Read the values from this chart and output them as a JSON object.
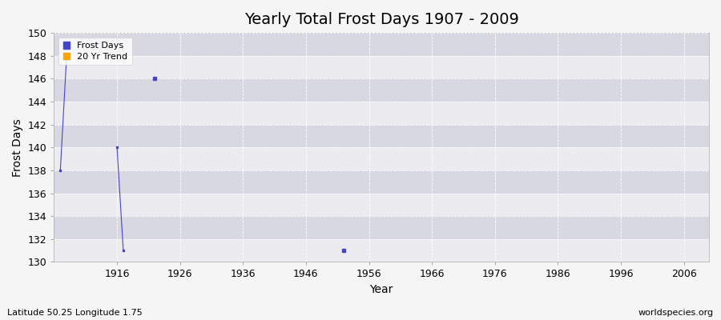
{
  "title": "Yearly Total Frost Days 1907 - 2009",
  "xlabel": "Year",
  "ylabel": "Frost Days",
  "ylim": [
    130,
    150
  ],
  "xlim": [
    1906,
    2010
  ],
  "xticks": [
    1916,
    1926,
    1936,
    1946,
    1956,
    1966,
    1976,
    1986,
    1996,
    2006
  ],
  "yticks": [
    130,
    132,
    134,
    136,
    138,
    140,
    142,
    144,
    146,
    148,
    150
  ],
  "line_groups": [
    {
      "years": [
        1907,
        1908
      ],
      "values": [
        138,
        148
      ]
    },
    {
      "years": [
        1916,
        1917
      ],
      "values": [
        140,
        131
      ]
    }
  ],
  "dot_points": [
    {
      "year": 1922,
      "value": 146
    },
    {
      "year": 1952,
      "value": 131
    }
  ],
  "data_color": "#4444cc",
  "trend_color": "#FFA500",
  "plot_bg_color": "#e8e8ee",
  "band_color_light": "#ebebf0",
  "band_color_dark": "#d8d8e2",
  "fig_bg_color": "#f5f5f5",
  "grid_color": "#ffffff",
  "title_fontsize": 14,
  "label_fontsize": 10,
  "tick_fontsize": 9,
  "subtitle_left": "Latitude 50.25 Longitude 1.75",
  "subtitle_right": "worldspecies.org",
  "legend_frost": "Frost Days",
  "legend_trend": "20 Yr Trend"
}
